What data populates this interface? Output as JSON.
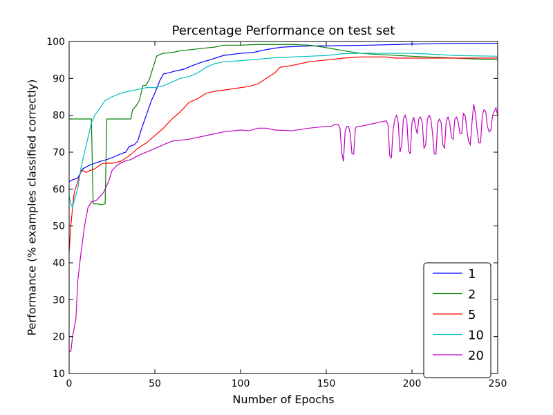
{
  "chart_data": {
    "type": "line",
    "title": "Percentage Performance on test set",
    "xlabel": "Number of Epochs",
    "ylabel": "Performance (% examples classified correctly)",
    "xlim": [
      0,
      250
    ],
    "ylim": [
      10,
      100
    ],
    "xticks": [
      0,
      50,
      100,
      150,
      200,
      250
    ],
    "yticks": [
      10,
      20,
      30,
      40,
      50,
      60,
      70,
      80,
      90,
      100
    ],
    "legend_position": "bottom-right",
    "grid": false,
    "series": [
      {
        "name": "1",
        "color": "#0000ff",
        "points": [
          [
            0,
            62
          ],
          [
            2,
            62.5
          ],
          [
            5,
            63
          ],
          [
            8,
            65.5
          ],
          [
            12,
            66.5
          ],
          [
            18,
            67.5
          ],
          [
            22,
            68
          ],
          [
            25,
            68.5
          ],
          [
            30,
            69.5
          ],
          [
            33,
            70
          ],
          [
            35,
            71.5
          ],
          [
            38,
            72
          ],
          [
            40,
            73
          ],
          [
            42,
            76
          ],
          [
            45,
            80
          ],
          [
            48,
            84
          ],
          [
            50,
            86
          ],
          [
            53,
            89.5
          ],
          [
            55,
            91.2
          ],
          [
            58,
            91.5
          ],
          [
            62,
            92
          ],
          [
            67,
            92.5
          ],
          [
            72,
            93.5
          ],
          [
            78,
            94.5
          ],
          [
            82,
            95
          ],
          [
            90,
            96.2
          ],
          [
            100,
            96.8
          ],
          [
            107,
            97
          ],
          [
            115,
            97.8
          ],
          [
            120,
            98.2
          ],
          [
            125,
            98.5
          ],
          [
            140,
            98.8
          ],
          [
            150,
            98.8
          ],
          [
            175,
            99
          ],
          [
            200,
            99.3
          ],
          [
            225,
            99.5
          ],
          [
            250,
            99.5
          ]
        ]
      },
      {
        "name": "2",
        "color": "#008000",
        "points": [
          [
            0,
            79
          ],
          [
            13,
            79
          ],
          [
            14,
            56
          ],
          [
            16,
            56
          ],
          [
            19,
            55.8
          ],
          [
            21,
            56
          ],
          [
            22,
            79
          ],
          [
            35,
            79
          ],
          [
            36,
            79
          ],
          [
            37,
            81.5
          ],
          [
            39,
            82.5
          ],
          [
            41,
            84
          ],
          [
            43,
            88
          ],
          [
            45,
            88.2
          ],
          [
            47,
            90
          ],
          [
            49,
            93
          ],
          [
            51,
            96
          ],
          [
            53,
            96.5
          ],
          [
            55,
            96.8
          ],
          [
            60,
            97
          ],
          [
            65,
            97.5
          ],
          [
            75,
            98
          ],
          [
            85,
            98.5
          ],
          [
            90,
            99
          ],
          [
            100,
            99
          ],
          [
            110,
            99.2
          ],
          [
            130,
            99.2
          ],
          [
            140,
            99
          ],
          [
            148,
            98.5
          ],
          [
            160,
            97.5
          ],
          [
            170,
            96.8
          ],
          [
            180,
            96.5
          ],
          [
            200,
            96
          ],
          [
            225,
            95.5
          ],
          [
            250,
            95
          ]
        ]
      },
      {
        "name": "5",
        "color": "#ff0000",
        "points": [
          [
            0,
            43
          ],
          [
            1,
            50
          ],
          [
            2,
            55
          ],
          [
            3,
            59
          ],
          [
            5,
            62
          ],
          [
            7,
            65
          ],
          [
            8,
            65
          ],
          [
            10,
            64.5
          ],
          [
            12,
            65
          ],
          [
            15,
            65.5
          ],
          [
            18,
            66.5
          ],
          [
            20,
            67
          ],
          [
            25,
            67
          ],
          [
            30,
            67.5
          ],
          [
            35,
            69
          ],
          [
            40,
            71
          ],
          [
            45,
            72.5
          ],
          [
            50,
            74.5
          ],
          [
            55,
            76.5
          ],
          [
            60,
            79
          ],
          [
            65,
            81
          ],
          [
            70,
            83.5
          ],
          [
            75,
            84.5
          ],
          [
            80,
            86
          ],
          [
            85,
            86.5
          ],
          [
            90,
            86.8
          ],
          [
            100,
            87.5
          ],
          [
            105,
            87.8
          ],
          [
            110,
            88.5
          ],
          [
            115,
            90
          ],
          [
            120,
            91.5
          ],
          [
            123,
            93
          ],
          [
            130,
            93.5
          ],
          [
            135,
            94
          ],
          [
            140,
            94.5
          ],
          [
            150,
            95
          ],
          [
            160,
            95.5
          ],
          [
            170,
            95.8
          ],
          [
            180,
            95.8
          ],
          [
            185,
            95.8
          ],
          [
            190,
            95.5
          ],
          [
            200,
            95.5
          ],
          [
            210,
            95.5
          ],
          [
            225,
            95.5
          ],
          [
            250,
            95.5
          ]
        ]
      },
      {
        "name": "10",
        "color": "#00bfbf",
        "points": [
          [
            0,
            58
          ],
          [
            1,
            56
          ],
          [
            2,
            55
          ],
          [
            3,
            57
          ],
          [
            5,
            60
          ],
          [
            7,
            66
          ],
          [
            9,
            70
          ],
          [
            11,
            74
          ],
          [
            13,
            78
          ],
          [
            15,
            80
          ],
          [
            18,
            82
          ],
          [
            21,
            84
          ],
          [
            25,
            85
          ],
          [
            30,
            86
          ],
          [
            35,
            86.5
          ],
          [
            40,
            87
          ],
          [
            45,
            87.5
          ],
          [
            50,
            87.5
          ],
          [
            55,
            88
          ],
          [
            60,
            89
          ],
          [
            65,
            90
          ],
          [
            70,
            90.5
          ],
          [
            75,
            91.5
          ],
          [
            80,
            93
          ],
          [
            85,
            94
          ],
          [
            90,
            94.5
          ],
          [
            100,
            94.8
          ],
          [
            110,
            95.2
          ],
          [
            120,
            95.6
          ],
          [
            130,
            95.8
          ],
          [
            140,
            96
          ],
          [
            150,
            96.2
          ],
          [
            160,
            96.7
          ],
          [
            170,
            96.8
          ],
          [
            180,
            96.8
          ],
          [
            190,
            96.8
          ],
          [
            200,
            96.8
          ],
          [
            210,
            96.6
          ],
          [
            225,
            96.2
          ],
          [
            250,
            96
          ]
        ]
      },
      {
        "name": "20",
        "color": "#bf00bf",
        "points": [
          [
            0,
            16
          ],
          [
            1,
            16
          ],
          [
            2,
            20
          ],
          [
            4,
            25
          ],
          [
            5,
            35
          ],
          [
            7,
            43
          ],
          [
            9,
            50
          ],
          [
            11,
            55
          ],
          [
            13,
            56.5
          ],
          [
            16,
            57
          ],
          [
            20,
            59
          ],
          [
            23,
            62
          ],
          [
            25,
            65
          ],
          [
            28,
            66.5
          ],
          [
            32,
            67.5
          ],
          [
            36,
            68
          ],
          [
            40,
            69
          ],
          [
            45,
            70
          ],
          [
            50,
            71
          ],
          [
            55,
            72
          ],
          [
            60,
            73
          ],
          [
            70,
            73.5
          ],
          [
            80,
            74.5
          ],
          [
            90,
            75.5
          ],
          [
            100,
            76
          ],
          [
            105,
            75.8
          ],
          [
            110,
            76.5
          ],
          [
            115,
            76.5
          ],
          [
            120,
            76
          ],
          [
            130,
            75.8
          ],
          [
            140,
            76.5
          ],
          [
            150,
            77
          ],
          [
            153,
            77
          ],
          [
            155,
            77.5
          ],
          [
            157,
            77.5
          ],
          [
            158,
            76.5
          ],
          [
            159,
            70
          ],
          [
            160,
            67.5
          ],
          [
            161,
            75.5
          ],
          [
            162,
            77
          ],
          [
            163,
            77
          ],
          [
            164,
            75
          ],
          [
            165,
            69.5
          ],
          [
            166,
            69.5
          ],
          [
            167,
            76.5
          ],
          [
            168,
            77
          ],
          [
            170,
            77
          ],
          [
            175,
            77.5
          ],
          [
            180,
            78
          ],
          [
            185,
            78.5
          ],
          [
            186,
            77.5
          ],
          [
            187,
            69
          ],
          [
            188,
            68.5
          ],
          [
            189,
            76
          ],
          [
            190,
            79
          ],
          [
            191,
            80
          ],
          [
            192,
            78
          ],
          [
            193,
            70
          ],
          [
            194,
            72
          ],
          [
            195,
            79
          ],
          [
            196,
            80
          ],
          [
            197,
            78.5
          ],
          [
            198,
            70.5
          ],
          [
            199,
            69.5
          ],
          [
            200,
            78
          ],
          [
            201,
            79.5
          ],
          [
            202,
            77
          ],
          [
            203,
            75
          ],
          [
            204,
            79
          ],
          [
            205,
            79.5
          ],
          [
            206,
            78
          ],
          [
            207,
            71
          ],
          [
            208,
            72
          ],
          [
            209,
            79
          ],
          [
            210,
            80
          ],
          [
            211,
            79
          ],
          [
            212,
            75
          ],
          [
            213,
            69.5
          ],
          [
            214,
            69.5
          ],
          [
            215,
            78
          ],
          [
            216,
            79
          ],
          [
            217,
            78
          ],
          [
            218,
            72
          ],
          [
            219,
            71
          ],
          [
            220,
            78.5
          ],
          [
            221,
            79.5
          ],
          [
            222,
            78
          ],
          [
            223,
            74
          ],
          [
            224,
            73.5
          ],
          [
            225,
            79
          ],
          [
            226,
            79.5
          ],
          [
            227,
            78
          ],
          [
            228,
            75
          ],
          [
            229,
            75
          ],
          [
            230,
            80.5
          ],
          [
            231,
            80
          ],
          [
            232,
            76
          ],
          [
            233,
            73
          ],
          [
            234,
            72
          ],
          [
            235,
            78
          ],
          [
            236,
            83
          ],
          [
            237,
            80.5
          ],
          [
            238,
            76
          ],
          [
            239,
            72.5
          ],
          [
            240,
            72.5
          ],
          [
            241,
            80
          ],
          [
            242,
            81.5
          ],
          [
            243,
            81
          ],
          [
            244,
            77
          ],
          [
            245,
            75.5
          ],
          [
            246,
            76
          ],
          [
            247,
            80
          ],
          [
            248,
            81
          ],
          [
            249,
            82
          ],
          [
            250,
            80
          ]
        ]
      }
    ]
  }
}
